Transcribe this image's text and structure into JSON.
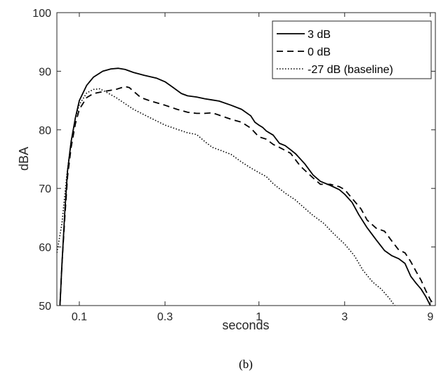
{
  "chart_data": {
    "type": "line",
    "xlabel": "seconds",
    "ylabel": "dBA",
    "caption": "(b)",
    "x_scale": "log",
    "xlim": [
      0.075,
      9.6
    ],
    "ylim": [
      50,
      100
    ],
    "x_ticks": [
      0.1,
      0.3,
      1,
      3,
      9
    ],
    "x_tick_labels": [
      "0.1",
      "0.3",
      "1",
      "3",
      "9"
    ],
    "y_ticks": [
      50,
      60,
      70,
      80,
      90,
      100
    ],
    "y_tick_labels": [
      "50",
      "60",
      "70",
      "80",
      "90",
      "100"
    ],
    "grid": false,
    "legend_position": "top-right",
    "series": [
      {
        "name": "3 dB",
        "style": "solid",
        "color": "#000000",
        "points": [
          [
            0.078,
            50
          ],
          [
            0.08,
            57
          ],
          [
            0.083,
            66
          ],
          [
            0.086,
            73
          ],
          [
            0.09,
            78
          ],
          [
            0.095,
            82
          ],
          [
            0.1,
            85
          ],
          [
            0.11,
            87.6
          ],
          [
            0.12,
            89
          ],
          [
            0.135,
            90
          ],
          [
            0.15,
            90.4
          ],
          [
            0.165,
            90.5
          ],
          [
            0.18,
            90.3
          ],
          [
            0.2,
            89.8
          ],
          [
            0.23,
            89.3
          ],
          [
            0.27,
            88.8
          ],
          [
            0.3,
            88.2
          ],
          [
            0.33,
            87.3
          ],
          [
            0.37,
            86.2
          ],
          [
            0.4,
            85.8
          ],
          [
            0.45,
            85.6
          ],
          [
            0.5,
            85.3
          ],
          [
            0.55,
            85.1
          ],
          [
            0.6,
            84.9
          ],
          [
            0.7,
            84.2
          ],
          [
            0.8,
            83.5
          ],
          [
            0.9,
            82.4
          ],
          [
            0.95,
            81.3
          ],
          [
            1.0,
            80.8
          ],
          [
            1.05,
            80.4
          ],
          [
            1.1,
            79.8
          ],
          [
            1.2,
            79.1
          ],
          [
            1.3,
            77.7
          ],
          [
            1.4,
            77.3
          ],
          [
            1.5,
            76.6
          ],
          [
            1.6,
            75.9
          ],
          [
            1.8,
            74.2
          ],
          [
            2.0,
            72.3
          ],
          [
            2.2,
            71.2
          ],
          [
            2.5,
            70.5
          ],
          [
            2.8,
            69.8
          ],
          [
            3.0,
            69.0
          ],
          [
            3.3,
            67.6
          ],
          [
            3.6,
            65.5
          ],
          [
            4.0,
            63.3
          ],
          [
            4.5,
            61.2
          ],
          [
            5.0,
            59.4
          ],
          [
            5.5,
            58.5
          ],
          [
            6.0,
            58.0
          ],
          [
            6.5,
            57.2
          ],
          [
            7.0,
            55.0
          ],
          [
            7.5,
            53.8
          ],
          [
            8.0,
            52.8
          ],
          [
            8.5,
            51.5
          ],
          [
            9.0,
            50.0
          ]
        ]
      },
      {
        "name": "0 dB",
        "style": "dashed",
        "color": "#000000",
        "points": [
          [
            0.078,
            50
          ],
          [
            0.08,
            57
          ],
          [
            0.083,
            65
          ],
          [
            0.086,
            72
          ],
          [
            0.09,
            77
          ],
          [
            0.095,
            81
          ],
          [
            0.1,
            83.5
          ],
          [
            0.11,
            85.5
          ],
          [
            0.12,
            86.2
          ],
          [
            0.14,
            86.6
          ],
          [
            0.16,
            86.9
          ],
          [
            0.18,
            87.4
          ],
          [
            0.19,
            87.2
          ],
          [
            0.2,
            86.6
          ],
          [
            0.22,
            85.5
          ],
          [
            0.25,
            84.9
          ],
          [
            0.3,
            84.2
          ],
          [
            0.35,
            83.5
          ],
          [
            0.4,
            83.0
          ],
          [
            0.45,
            82.8
          ],
          [
            0.5,
            82.8
          ],
          [
            0.55,
            82.9
          ],
          [
            0.6,
            82.5
          ],
          [
            0.7,
            81.8
          ],
          [
            0.8,
            81.3
          ],
          [
            0.9,
            80.3
          ],
          [
            1.0,
            78.8
          ],
          [
            1.1,
            78.4
          ],
          [
            1.2,
            77.5
          ],
          [
            1.3,
            77.0
          ],
          [
            1.5,
            76.0
          ],
          [
            1.7,
            73.8
          ],
          [
            2.0,
            71.8
          ],
          [
            2.2,
            70.7
          ],
          [
            2.5,
            70.7
          ],
          [
            2.8,
            70.3
          ],
          [
            3.0,
            69.8
          ],
          [
            3.3,
            68.3
          ],
          [
            3.7,
            66.5
          ],
          [
            4.0,
            64.6
          ],
          [
            4.5,
            63.2
          ],
          [
            5.0,
            62.7
          ],
          [
            5.5,
            61.0
          ],
          [
            6.0,
            59.5
          ],
          [
            6.5,
            59.0
          ],
          [
            7.0,
            57.5
          ],
          [
            7.5,
            55.8
          ],
          [
            8.0,
            54.3
          ],
          [
            8.5,
            52.5
          ],
          [
            9.0,
            51.0
          ],
          [
            9.5,
            50.0
          ]
        ]
      },
      {
        "name": "-27 dB (baseline)",
        "style": "dotted",
        "color": "#000000",
        "points": [
          [
            0.075,
            59
          ],
          [
            0.08,
            64
          ],
          [
            0.085,
            72
          ],
          [
            0.09,
            78
          ],
          [
            0.095,
            82
          ],
          [
            0.1,
            84.3
          ],
          [
            0.11,
            86.3
          ],
          [
            0.12,
            86.9
          ],
          [
            0.13,
            87.0
          ],
          [
            0.14,
            86.5
          ],
          [
            0.16,
            85.5
          ],
          [
            0.2,
            83.5
          ],
          [
            0.25,
            82.0
          ],
          [
            0.3,
            80.8
          ],
          [
            0.35,
            80.1
          ],
          [
            0.4,
            79.5
          ],
          [
            0.45,
            79.2
          ],
          [
            0.5,
            78.0
          ],
          [
            0.55,
            77.0
          ],
          [
            0.6,
            76.6
          ],
          [
            0.7,
            75.8
          ],
          [
            0.8,
            74.5
          ],
          [
            0.9,
            73.5
          ],
          [
            1.0,
            72.7
          ],
          [
            1.1,
            72.0
          ],
          [
            1.2,
            70.8
          ],
          [
            1.4,
            69.2
          ],
          [
            1.6,
            68.0
          ],
          [
            1.8,
            66.6
          ],
          [
            2.0,
            65.4
          ],
          [
            2.3,
            64.0
          ],
          [
            2.6,
            62.3
          ],
          [
            3.0,
            60.5
          ],
          [
            3.4,
            58.5
          ],
          [
            3.8,
            56.0
          ],
          [
            4.3,
            54.0
          ],
          [
            4.8,
            52.8
          ],
          [
            5.3,
            51.3
          ],
          [
            5.7,
            50.0
          ]
        ]
      }
    ]
  }
}
